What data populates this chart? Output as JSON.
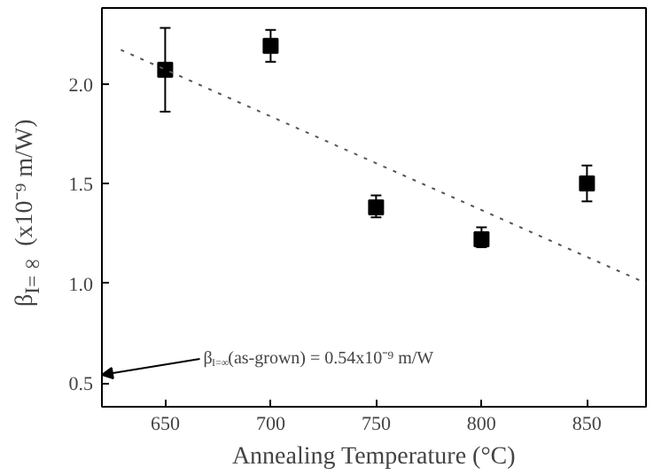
{
  "chart_data": {
    "type": "scatter",
    "xlabel": "Annealing Temperature (°C)",
    "ylabel": "β$_{I=∞}$ (x10⁻⁹ m/W)",
    "x": [
      650,
      700,
      750,
      800,
      850
    ],
    "series": [
      {
        "color": "#000000",
        "values": [
          2.07,
          2.19,
          1.38,
          1.22,
          1.5
        ],
        "errors": [
          [
            1.86,
            2.28
          ],
          [
            2.11,
            2.27
          ],
          [
            1.33,
            1.44
          ],
          [
            1.18,
            1.28
          ],
          [
            1.41,
            1.59
          ]
        ],
        "marker": "square"
      },
      {
        "type": "line",
        "color": "#555555",
        "x": [
          629,
          878
        ],
        "values": [
          2.17,
          1.0
        ],
        "line_style": "dotted",
        "marker": "none"
      }
    ],
    "xlim": [
      620,
      878
    ],
    "ylim": [
      0.38,
      2.38
    ],
    "xticks": [
      650,
      700,
      750,
      800,
      850
    ],
    "yticks": [
      0.5,
      {
        "value": 1,
        "label": "1.0"
      },
      1.5,
      {
        "value": 2,
        "label": "2.0"
      }
    ],
    "annotations": [
      "β$_{I=∞}$(as-grown) = 0.54x10⁻⁹ m/W"
    ],
    "grid": false
  }
}
